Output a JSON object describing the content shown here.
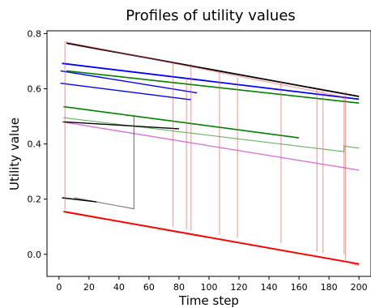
{
  "chart_data": {
    "type": "line",
    "title": "Profiles of utility values",
    "xlabel": "Time step",
    "ylabel": "Utility value",
    "xlim": [
      -8,
      208
    ],
    "ylim": [
      -0.08,
      0.81
    ],
    "xticks": [
      0,
      20,
      40,
      60,
      80,
      100,
      120,
      140,
      160,
      180,
      200
    ],
    "yticks": [
      0.0,
      0.2,
      0.4,
      0.6,
      0.8
    ],
    "ytick_labels": [
      "0.0",
      "0.2",
      "0.4",
      "0.6",
      "0.8"
    ],
    "grid": false,
    "legend": "none",
    "series": [
      {
        "color": "#000000",
        "alpha": 1.0,
        "width": 1.8,
        "x": [
          5,
          200
        ],
        "y": [
          0.765,
          0.572
        ]
      },
      {
        "color": "#0000ff",
        "alpha": 1.0,
        "width": 1.8,
        "x": [
          2,
          200
        ],
        "y": [
          0.692,
          0.562
        ]
      },
      {
        "color": "#0000ff",
        "alpha": 1.0,
        "width": 1.4,
        "x": [
          1,
          92
        ],
        "y": [
          0.665,
          0.585
        ]
      },
      {
        "color": "#0000ff",
        "alpha": 1.0,
        "width": 1.4,
        "x": [
          1,
          88
        ],
        "y": [
          0.62,
          0.56
        ]
      },
      {
        "color": "#008000",
        "alpha": 1.0,
        "width": 1.6,
        "x": [
          5,
          200
        ],
        "y": [
          0.665,
          0.548
        ]
      },
      {
        "color": "#008000",
        "alpha": 1.0,
        "width": 1.6,
        "x": [
          3,
          160
        ],
        "y": [
          0.535,
          0.422
        ]
      },
      {
        "color": "#008000",
        "alpha": 0.6,
        "width": 1.2,
        "x": [
          3,
          190,
          190,
          200
        ],
        "y": [
          0.495,
          0.372,
          0.392,
          0.385
        ]
      },
      {
        "color": "#cc44cc",
        "alpha": 0.75,
        "width": 1.4,
        "x": [
          2,
          200
        ],
        "y": [
          0.48,
          0.305
        ]
      },
      {
        "color": "#ff0000",
        "alpha": 1.0,
        "width": 2.0,
        "x": [
          3,
          200
        ],
        "y": [
          0.155,
          -0.035
        ]
      },
      {
        "color": "#ff4444",
        "alpha": 0.6,
        "width": 1.4,
        "x": [
          193,
          200
        ],
        "y": [
          -0.03,
          -0.04
        ]
      },
      {
        "color": "#000000",
        "alpha": 1.0,
        "width": 1.4,
        "x": [
          2,
          25
        ],
        "y": [
          0.205,
          0.19
        ]
      },
      {
        "color": "#000000",
        "alpha": 1.0,
        "width": 1.4,
        "x": [
          3,
          80
        ],
        "y": [
          0.48,
          0.455
        ]
      },
      {
        "color": "#000000",
        "alpha": 0.5,
        "width": 1.2,
        "x": [
          10,
          50,
          50
        ],
        "y": [
          0.205,
          0.165,
          0.5
        ]
      },
      {
        "color": "#ff4444",
        "alpha": 0.5,
        "width": 1.2,
        "x": [
          4,
          4,
          190,
          190
        ],
        "y": [
          0.16,
          0.77,
          0.57,
          0.0
        ]
      },
      {
        "color": "#ff4444",
        "alpha": 0.5,
        "width": 1.2,
        "x": [
          76,
          76,
          76
        ],
        "y": [
          0.1,
          0.7,
          0.45
        ]
      },
      {
        "color": "#ff4444",
        "alpha": 0.5,
        "width": 1.2,
        "x": [
          85,
          85
        ],
        "y": [
          0.09,
          0.64
        ]
      },
      {
        "color": "#ff4444",
        "alpha": 0.5,
        "width": 1.2,
        "x": [
          88,
          88
        ],
        "y": [
          0.085,
          0.69
        ]
      },
      {
        "color": "#ff4444",
        "alpha": 0.5,
        "width": 1.2,
        "x": [
          107,
          107
        ],
        "y": [
          0.07,
          0.66
        ]
      },
      {
        "color": "#ff4444",
        "alpha": 0.5,
        "width": 1.2,
        "x": [
          119,
          119
        ],
        "y": [
          0.06,
          0.64
        ]
      },
      {
        "color": "#ff4444",
        "alpha": 0.5,
        "width": 1.2,
        "x": [
          148,
          148
        ],
        "y": [
          0.04,
          0.63
        ]
      },
      {
        "color": "#ff4444",
        "alpha": 0.5,
        "width": 1.2,
        "x": [
          172,
          172
        ],
        "y": [
          0.01,
          0.6
        ]
      },
      {
        "color": "#ff4444",
        "alpha": 0.5,
        "width": 1.2,
        "x": [
          176,
          176
        ],
        "y": [
          0.005,
          0.6
        ]
      },
      {
        "color": "#ff4444",
        "alpha": 0.5,
        "width": 1.2,
        "x": [
          191,
          191
        ],
        "y": [
          -0.02,
          0.59
        ]
      }
    ]
  }
}
